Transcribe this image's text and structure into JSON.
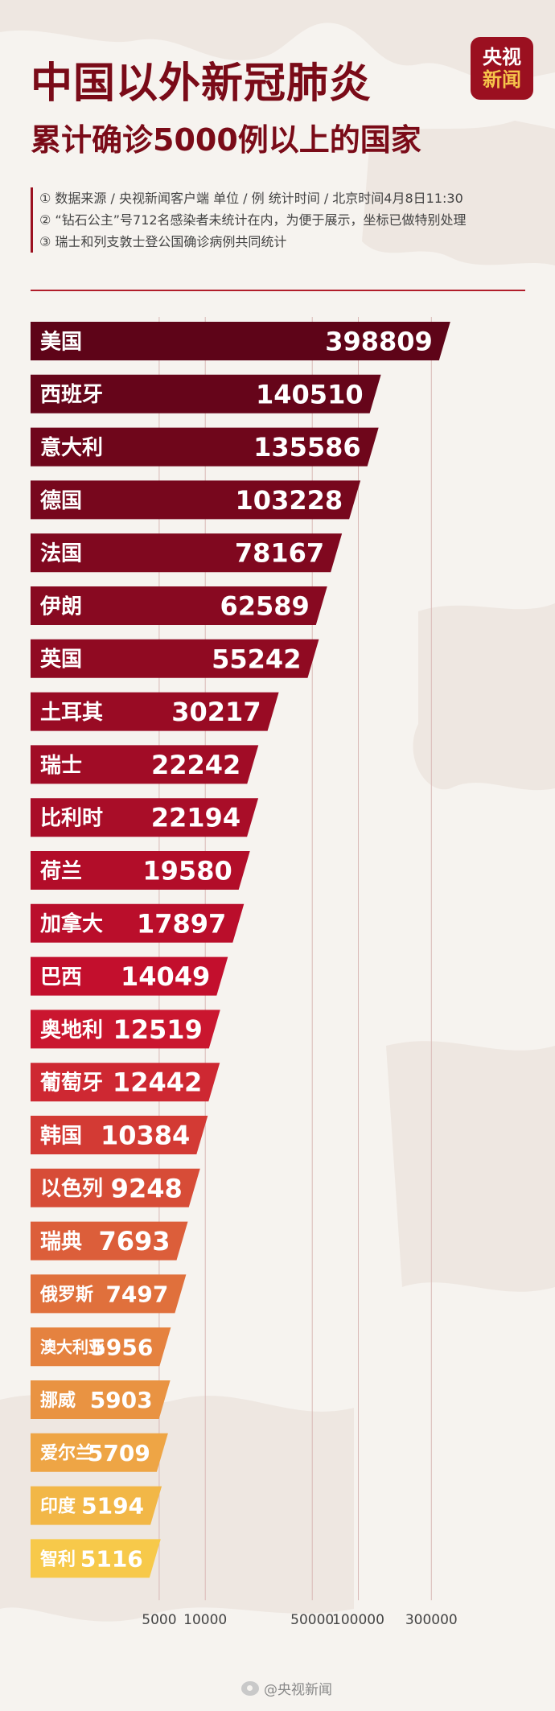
{
  "header": {
    "title": "中国以外新冠肺炎",
    "subtitle": "累计确诊5000例以上的国家",
    "logo_top": "央视",
    "logo_bottom": "新闻"
  },
  "notes": [
    "① 数据来源 / 央视新闻客户端  单位 / 例  统计时间 / 北京时间4月8日11:30",
    "② “钻石公主”号712名感染者未统计在内，为便于展示，坐标已做特别处理",
    "③ 瑞士和列支敦士登公国确诊病例共同统计"
  ],
  "footer": {
    "text": "@央视新闻"
  },
  "colors": {
    "accent": "#7a0b18",
    "start": "#5e0418",
    "mid": "#c8102e",
    "end": "#f7c94a"
  },
  "chart_data": {
    "type": "bar",
    "orientation": "horizontal",
    "scale": "log",
    "categories": [
      "美国",
      "西班牙",
      "意大利",
      "德国",
      "法国",
      "伊朗",
      "英国",
      "土耳其",
      "瑞士",
      "比利时",
      "荷兰",
      "加拿大",
      "巴西",
      "奥地利",
      "葡萄牙",
      "韩国",
      "以色列",
      "瑞典",
      "俄罗斯",
      "澳大利亚",
      "挪威",
      "爱尔兰",
      "印度",
      "智利"
    ],
    "values": [
      398809,
      140510,
      135586,
      103228,
      78167,
      62589,
      55242,
      30217,
      22242,
      22194,
      19580,
      17897,
      14049,
      12519,
      12442,
      10384,
      9248,
      7693,
      7497,
      5956,
      5903,
      5709,
      5194,
      5116
    ],
    "x_ticks": [
      5000,
      10000,
      50000,
      100000,
      300000
    ],
    "x_tick_labels": [
      "5000",
      "10000",
      "50000",
      "100000",
      "300000"
    ],
    "title": "中国以外新冠肺炎 累计确诊5000例以上的国家",
    "grid": true
  }
}
